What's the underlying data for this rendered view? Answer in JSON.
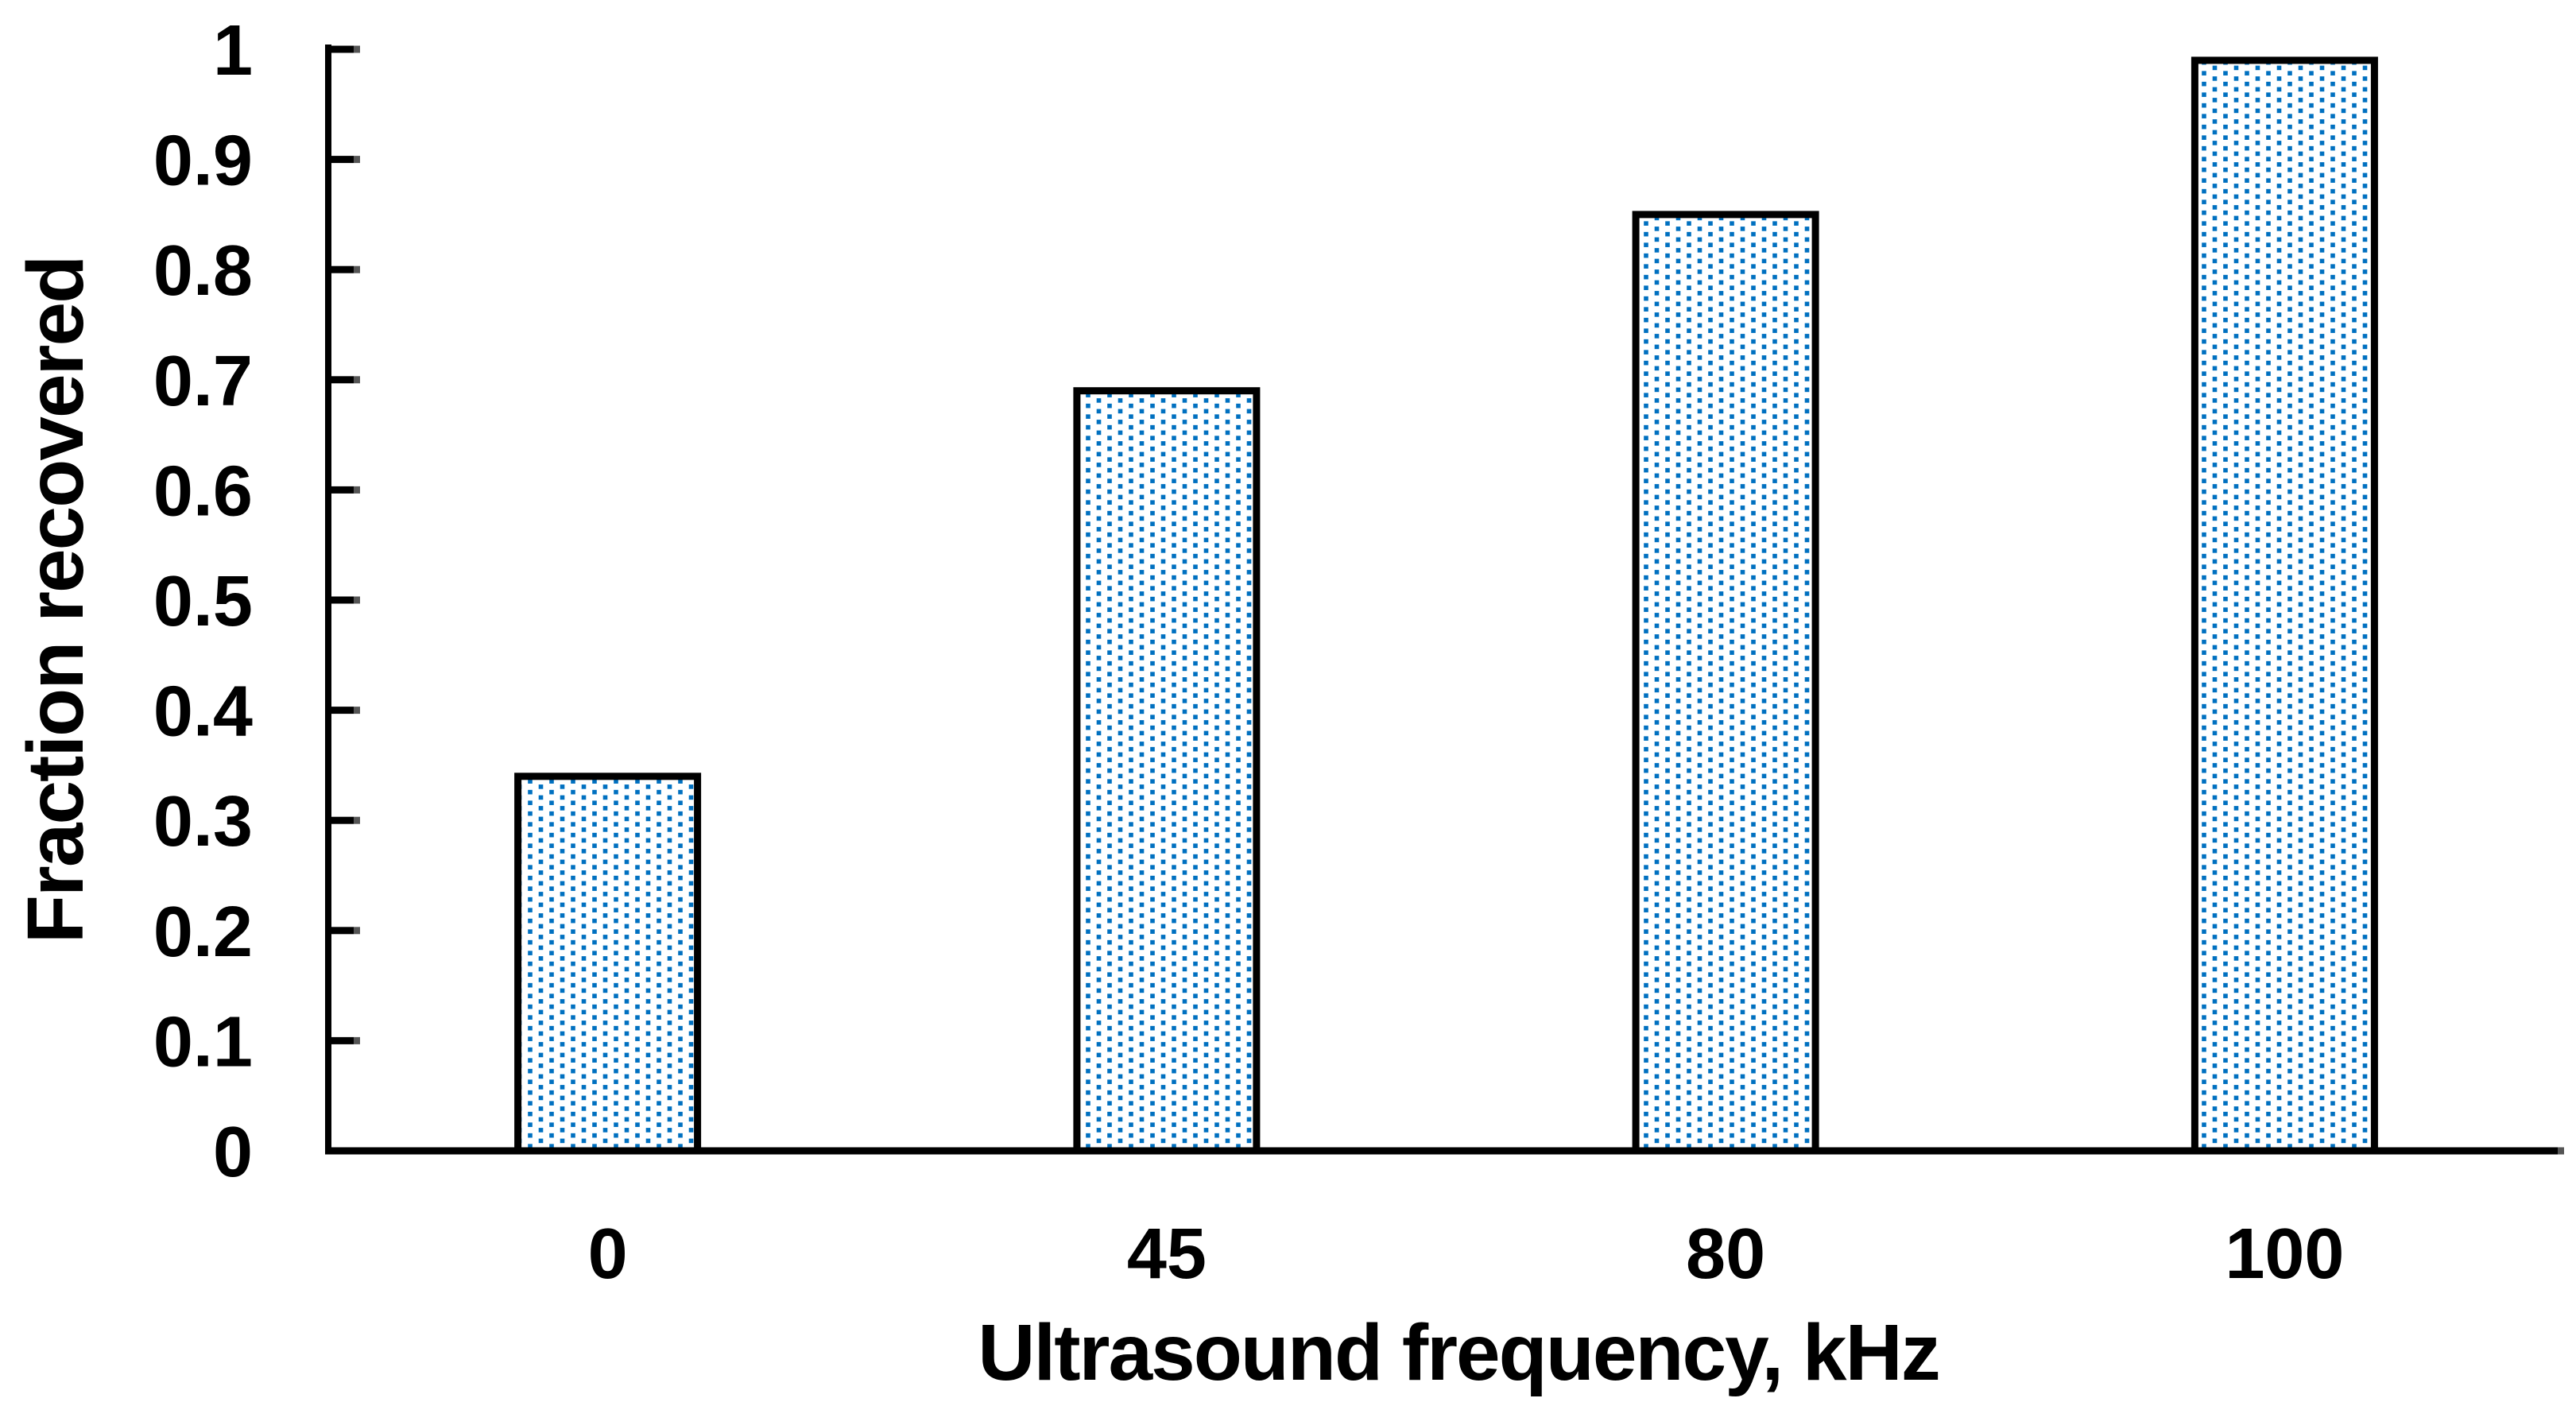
{
  "chart_data": {
    "type": "bar",
    "title": "",
    "categories": [
      "0",
      "45",
      "80",
      "100"
    ],
    "values": [
      0.34,
      0.69,
      0.85,
      0.99
    ],
    "xlabel": "Ultrasound frequency, kHz",
    "ylabel": "Fraction recovered",
    "ylim": [
      0,
      1
    ],
    "yticks": [
      {
        "v": 0.0,
        "label": "0"
      },
      {
        "v": 0.1,
        "label": "0.1"
      },
      {
        "v": 0.2,
        "label": "0.2"
      },
      {
        "v": 0.3,
        "label": "0.3"
      },
      {
        "v": 0.4,
        "label": "0.4"
      },
      {
        "v": 0.5,
        "label": "0.5"
      },
      {
        "v": 0.6,
        "label": "0.6"
      },
      {
        "v": 0.7,
        "label": "0.7"
      },
      {
        "v": 0.8,
        "label": "0.8"
      },
      {
        "v": 0.9,
        "label": "0.9"
      },
      {
        "v": 1.0,
        "label": "1"
      }
    ],
    "grid": false,
    "legend_position": "none",
    "bar_fill_pattern": "offset-grid-of-small-blue-squares-on-white",
    "style": {
      "bar_dot_color": "#0070C0",
      "bar_border_color": "#000000",
      "axis_color": "#000000",
      "tick_cap_color": "#555555",
      "text_color": "#000000",
      "background": "#FFFFFF"
    }
  }
}
